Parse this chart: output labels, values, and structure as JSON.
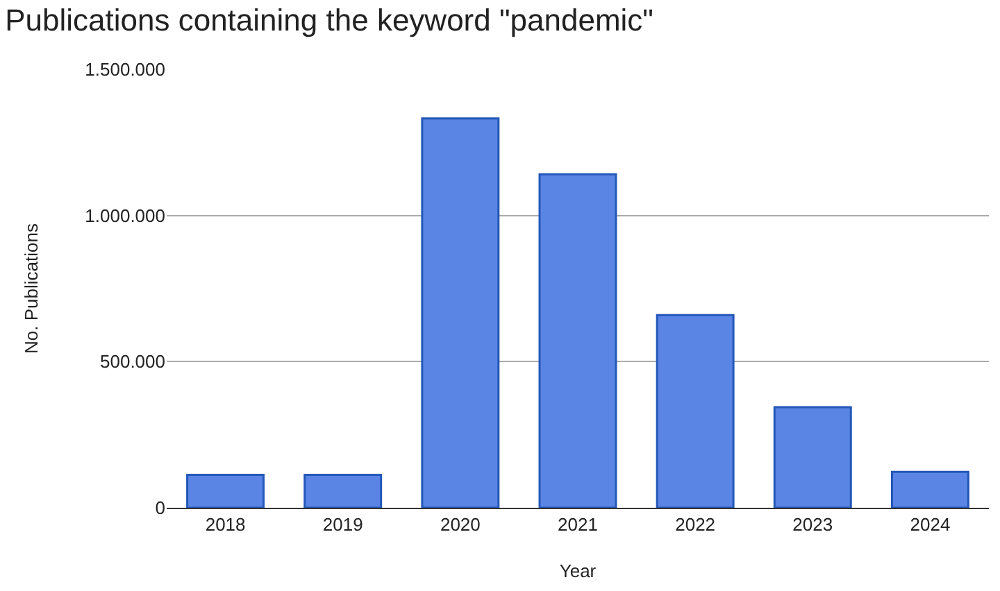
{
  "chart_data": {
    "type": "bar",
    "title": "Publications containing the keyword \"pandemic\"",
    "xlabel": "Year",
    "ylabel": "No. Publications",
    "categories": [
      "2018",
      "2019",
      "2020",
      "2021",
      "2022",
      "2023",
      "2024"
    ],
    "values": [
      113000,
      113000,
      1332000,
      1141000,
      659000,
      344000,
      123000
    ],
    "color": "#5a85e4",
    "ylim": [
      0,
      1500000
    ],
    "yticks": [
      0,
      {
        "value": 500000,
        "label": "500.000"
      },
      {
        "value": 1000000,
        "label": "1.000.000"
      },
      {
        "value": 1500000,
        "label": "1.500.000"
      }
    ],
    "grid": "y",
    "legend": false
  }
}
